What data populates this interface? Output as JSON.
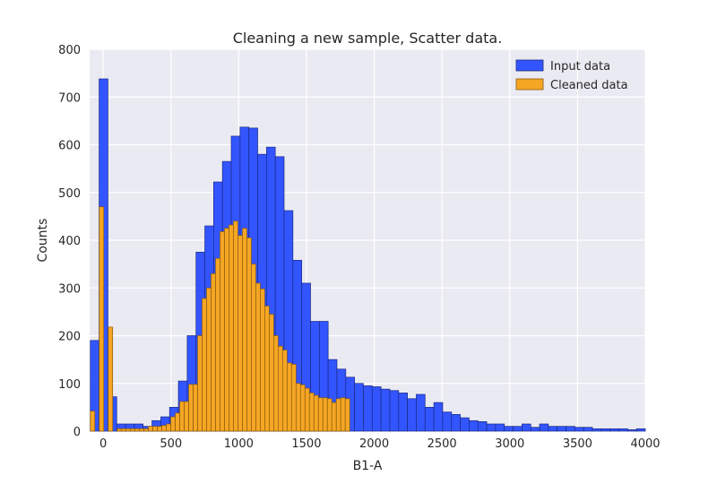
{
  "chart_data": {
    "type": "bar",
    "title": "Cleaning a new sample, Scatter data.",
    "xlabel": "B1-A",
    "ylabel": "Counts",
    "xlim": [
      -100,
      4000
    ],
    "ylim": [
      0,
      800
    ],
    "xticks": [
      0,
      500,
      1000,
      1500,
      2000,
      2500,
      3000,
      3500,
      4000
    ],
    "yticks": [
      0,
      100,
      200,
      300,
      400,
      500,
      600,
      700,
      800
    ],
    "grid": true,
    "legend_position": "top-right",
    "colors": {
      "background": "#eaeaf2",
      "grid": "#ffffff",
      "input": "#3355ff",
      "cleaned": "#f5a623"
    },
    "series": [
      {
        "name": "Input data",
        "color": "#3355ff",
        "bins": [
          [
            -95,
            -30,
            190
          ],
          [
            -30,
            35,
            738
          ],
          [
            35,
            100,
            72
          ],
          [
            100,
            165,
            15
          ],
          [
            165,
            230,
            15
          ],
          [
            230,
            295,
            15
          ],
          [
            295,
            360,
            10
          ],
          [
            360,
            425,
            22
          ],
          [
            425,
            490,
            30
          ],
          [
            490,
            555,
            50
          ],
          [
            555,
            620,
            105
          ],
          [
            620,
            685,
            200
          ],
          [
            685,
            750,
            375
          ],
          [
            750,
            815,
            430
          ],
          [
            815,
            880,
            522
          ],
          [
            880,
            945,
            565
          ],
          [
            945,
            1010,
            618
          ],
          [
            1010,
            1075,
            637
          ],
          [
            1075,
            1140,
            635
          ],
          [
            1140,
            1205,
            580
          ],
          [
            1205,
            1270,
            595
          ],
          [
            1270,
            1335,
            575
          ],
          [
            1335,
            1400,
            462
          ],
          [
            1400,
            1465,
            358
          ],
          [
            1465,
            1530,
            310
          ],
          [
            1530,
            1595,
            230
          ],
          [
            1595,
            1660,
            230
          ],
          [
            1660,
            1725,
            150
          ],
          [
            1725,
            1790,
            130
          ],
          [
            1790,
            1855,
            113
          ],
          [
            1855,
            1920,
            100
          ],
          [
            1920,
            1985,
            95
          ],
          [
            1985,
            2050,
            93
          ],
          [
            2050,
            2115,
            88
          ],
          [
            2115,
            2180,
            85
          ],
          [
            2180,
            2245,
            80
          ],
          [
            2245,
            2310,
            68
          ],
          [
            2310,
            2375,
            77
          ],
          [
            2375,
            2440,
            50
          ],
          [
            2440,
            2505,
            60
          ],
          [
            2505,
            2570,
            40
          ],
          [
            2570,
            2635,
            35
          ],
          [
            2635,
            2700,
            28
          ],
          [
            2700,
            2765,
            22
          ],
          [
            2765,
            2830,
            20
          ],
          [
            2830,
            2895,
            15
          ],
          [
            2895,
            2960,
            15
          ],
          [
            2960,
            3025,
            10
          ],
          [
            3025,
            3090,
            10
          ],
          [
            3090,
            3155,
            15
          ],
          [
            3155,
            3220,
            8
          ],
          [
            3220,
            3285,
            15
          ],
          [
            3285,
            3350,
            10
          ],
          [
            3350,
            3415,
            10
          ],
          [
            3415,
            3480,
            10
          ],
          [
            3480,
            3545,
            8
          ],
          [
            3545,
            3610,
            8
          ],
          [
            3610,
            3675,
            5
          ],
          [
            3675,
            3740,
            5
          ],
          [
            3740,
            3805,
            5
          ],
          [
            3805,
            3870,
            5
          ],
          [
            3870,
            3935,
            3
          ],
          [
            3935,
            4000,
            5
          ]
        ]
      },
      {
        "name": "Cleaned data",
        "color": "#f5a623",
        "bins": [
          [
            -95,
            -62,
            42
          ],
          [
            -62,
            -29,
            0
          ],
          [
            -29,
            4,
            470
          ],
          [
            4,
            37,
            0
          ],
          [
            37,
            70,
            218
          ],
          [
            70,
            103,
            0
          ],
          [
            103,
            136,
            5
          ],
          [
            136,
            169,
            5
          ],
          [
            169,
            202,
            5
          ],
          [
            202,
            235,
            5
          ],
          [
            235,
            268,
            5
          ],
          [
            268,
            301,
            5
          ],
          [
            301,
            334,
            5
          ],
          [
            334,
            367,
            10
          ],
          [
            367,
            400,
            10
          ],
          [
            400,
            433,
            10
          ],
          [
            433,
            466,
            12
          ],
          [
            466,
            499,
            15
          ],
          [
            499,
            532,
            30
          ],
          [
            532,
            565,
            38
          ],
          [
            565,
            598,
            62
          ],
          [
            598,
            631,
            62
          ],
          [
            631,
            664,
            98
          ],
          [
            664,
            697,
            98
          ],
          [
            697,
            730,
            200
          ],
          [
            730,
            763,
            278
          ],
          [
            763,
            796,
            300
          ],
          [
            796,
            829,
            330
          ],
          [
            829,
            862,
            362
          ],
          [
            862,
            895,
            418
          ],
          [
            895,
            928,
            425
          ],
          [
            928,
            961,
            432
          ],
          [
            961,
            994,
            440
          ],
          [
            994,
            1027,
            410
          ],
          [
            1027,
            1060,
            425
          ],
          [
            1060,
            1093,
            405
          ],
          [
            1093,
            1126,
            350
          ],
          [
            1126,
            1159,
            310
          ],
          [
            1159,
            1192,
            298
          ],
          [
            1192,
            1225,
            262
          ],
          [
            1225,
            1258,
            245
          ],
          [
            1258,
            1291,
            200
          ],
          [
            1291,
            1324,
            178
          ],
          [
            1324,
            1357,
            170
          ],
          [
            1357,
            1390,
            143
          ],
          [
            1390,
            1423,
            140
          ],
          [
            1423,
            1456,
            100
          ],
          [
            1456,
            1489,
            97
          ],
          [
            1489,
            1522,
            90
          ],
          [
            1522,
            1555,
            80
          ],
          [
            1555,
            1588,
            75
          ],
          [
            1588,
            1621,
            70
          ],
          [
            1621,
            1654,
            70
          ],
          [
            1654,
            1687,
            68
          ],
          [
            1687,
            1720,
            60
          ],
          [
            1720,
            1753,
            68
          ],
          [
            1753,
            1786,
            70
          ],
          [
            1786,
            1819,
            68
          ]
        ]
      }
    ]
  }
}
